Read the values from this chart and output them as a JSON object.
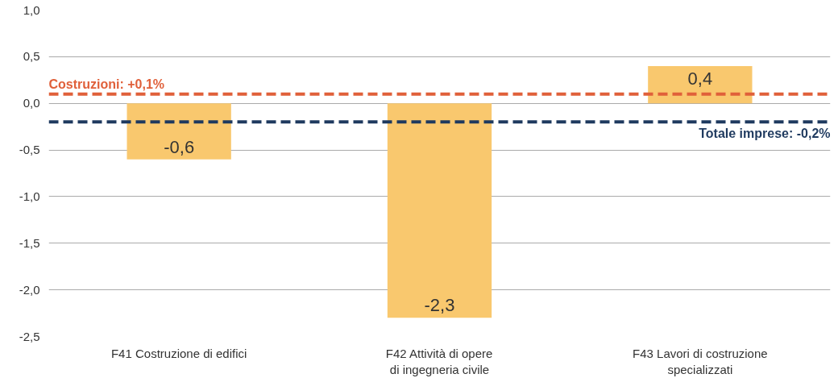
{
  "chart_data": {
    "type": "bar",
    "categories": [
      "F41 Costruzione di edifici",
      "F42 Attività di opere\ndi ingegneria civile",
      "F43 Lavori di costruzione\nspecializzati"
    ],
    "values": [
      -0.6,
      -2.3,
      0.4
    ],
    "color": "#f9c86e",
    "value_labels": [
      "-0,6",
      "-2,3",
      "0,4"
    ],
    "ylim": [
      -2.5,
      1.0
    ],
    "yticks": [
      {
        "value": -2.5,
        "label": "-2,5"
      },
      {
        "value": -2.0,
        "label": "-2,0"
      },
      {
        "value": -1.5,
        "label": "-1,5"
      },
      {
        "value": -1.0,
        "label": "-1,0"
      },
      {
        "value": -0.5,
        "label": "-0,5"
      },
      {
        "value": 0.0,
        "label": "0,0"
      },
      {
        "value": 0.5,
        "label": "0,5"
      },
      {
        "value": 1.0,
        "label": "1,0"
      }
    ],
    "grid": "y",
    "ref_lines": [
      {
        "axis": "y",
        "value": 0.1,
        "label": "Costruzioni: +0,1%",
        "color": "#e0603a",
        "line_style": "dashed"
      },
      {
        "axis": "y",
        "value": -0.2,
        "label": "Totale imprese: -0,2%",
        "color": "#1f3a5f",
        "line_style": "dashed"
      }
    ]
  }
}
